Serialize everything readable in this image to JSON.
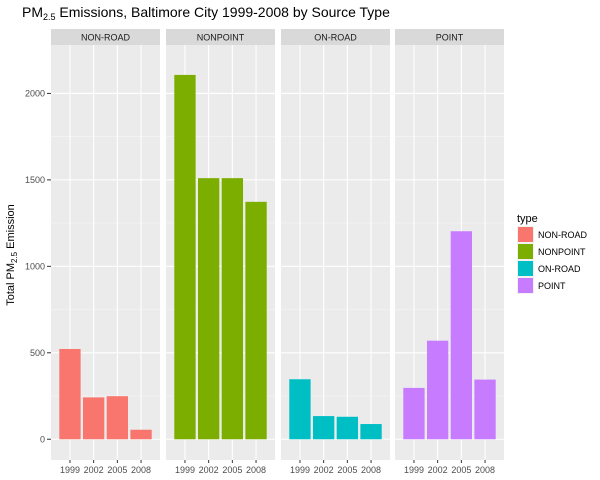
{
  "chart_data": {
    "type": "bar",
    "title": "PM2.5 Emissions, Baltimore City 1999-2008 by Source Type",
    "title_parts": {
      "pre": "PM",
      "sub": "2.5",
      "post": " Emissions, Baltimore City 1999-2008 by Source Type"
    },
    "ylabel": "Total PM2.5 Emission",
    "ylabel_parts": {
      "pre": "Total PM",
      "sub": "2.5",
      "post": " Emission"
    },
    "xlabel": "",
    "categories": [
      "1999",
      "2002",
      "2005",
      "2008"
    ],
    "ylim": [
      -120,
      2280
    ],
    "yticks": [
      0,
      500,
      1000,
      1500,
      2000
    ],
    "ytick_labels": [
      "0",
      "500",
      "1000",
      "1500",
      "2000"
    ],
    "grid": true,
    "legend_title": "type",
    "legend_position": "right",
    "facets": [
      {
        "label": "NON-ROAD",
        "color": "#F8766D",
        "values": [
          522,
          242,
          249,
          55
        ]
      },
      {
        "label": "NONPOINT",
        "color": "#7CAE00",
        "values": [
          2107,
          1510,
          1510,
          1373
        ]
      },
      {
        "label": "ON-ROAD",
        "color": "#00BFC4",
        "values": [
          347,
          134,
          130,
          88
        ]
      },
      {
        "label": "POINT",
        "color": "#C77CFF",
        "values": [
          297,
          570,
          1203,
          345
        ]
      }
    ]
  }
}
